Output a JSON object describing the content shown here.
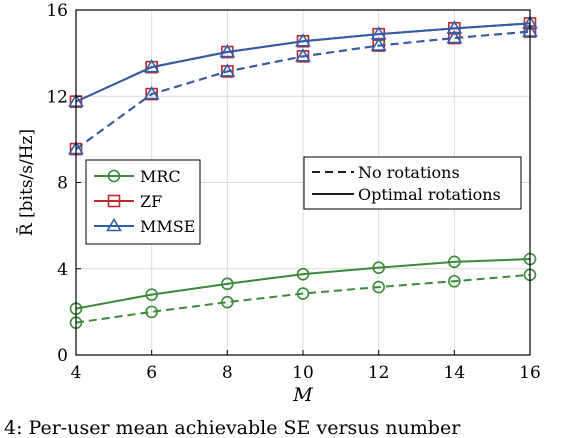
{
  "chart_data": {
    "type": "line",
    "xlabel": "M",
    "ylabel": "R̄ [bits/s/Hz]",
    "x": [
      4,
      6,
      8,
      10,
      12,
      14,
      16
    ],
    "xlim": [
      4,
      16
    ],
    "ylim": [
      0,
      16
    ],
    "xticks": [
      "4",
      "6",
      "8",
      "10",
      "12",
      "14",
      "16"
    ],
    "yticks": [
      "0",
      "4",
      "8",
      "12",
      "16"
    ],
    "grid": true,
    "series": [
      {
        "name": "MRC",
        "condition": "Optimal rotations",
        "color": "#3a8a3a",
        "marker": "circle",
        "dash": false,
        "values": [
          2.15,
          2.8,
          3.3,
          3.75,
          4.05,
          4.32,
          4.45
        ]
      },
      {
        "name": "MRC",
        "condition": "No rotations",
        "color": "#3a8a3a",
        "marker": "circle",
        "dash": true,
        "values": [
          1.5,
          2.0,
          2.45,
          2.85,
          3.15,
          3.42,
          3.72
        ]
      },
      {
        "name": "ZF",
        "condition": "Optimal rotations",
        "color": "#c0272d",
        "marker": "square",
        "dash": false,
        "values": [
          11.75,
          13.35,
          14.05,
          14.55,
          14.88,
          15.15,
          15.38
        ]
      },
      {
        "name": "ZF",
        "condition": "No rotations",
        "color": "#c0272d",
        "marker": "square",
        "dash": true,
        "values": [
          9.55,
          12.1,
          13.15,
          13.85,
          14.35,
          14.7,
          15.0
        ]
      },
      {
        "name": "MMSE",
        "condition": "Optimal rotations",
        "color": "#2e5fa8",
        "marker": "triangle",
        "dash": false,
        "values": [
          11.75,
          13.35,
          14.05,
          14.55,
          14.88,
          15.15,
          15.38
        ]
      },
      {
        "name": "MMSE",
        "condition": "No rotations",
        "color": "#2e5fa8",
        "marker": "triangle",
        "dash": true,
        "values": [
          9.55,
          12.1,
          13.15,
          13.85,
          14.35,
          14.7,
          15.0
        ]
      }
    ],
    "legend_methods": [
      {
        "label": "MRC",
        "color": "#3a8a3a",
        "marker": "circle"
      },
      {
        "label": "ZF",
        "color": "#c0272d",
        "marker": "square"
      },
      {
        "label": "MMSE",
        "color": "#2e5fa8",
        "marker": "triangle"
      }
    ],
    "legend_styles": [
      {
        "label": "No rotations",
        "dash": true
      },
      {
        "label": "Optimal rotations",
        "dash": false
      }
    ],
    "legend_methods_placement": "middle-left",
    "legend_styles_placement": "middle-right"
  },
  "caption": "4: Per-user mean achievable SE versus number"
}
